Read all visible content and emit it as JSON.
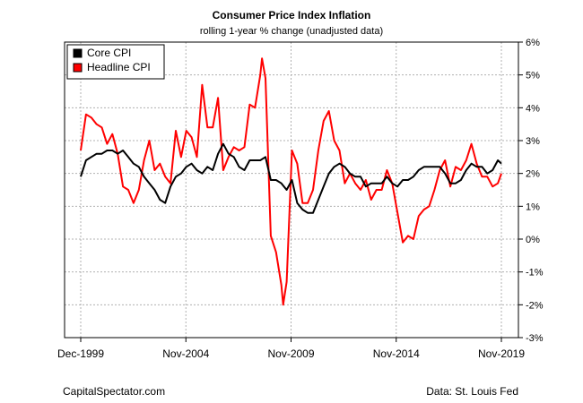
{
  "chart_data": {
    "type": "line",
    "title": "Consumer Price Index Inflation",
    "subtitle": "rolling 1-year % change (unadjusted data)",
    "x_tick_labels": [
      "Dec-1999",
      "Nov-2004",
      "Nov-2009",
      "Nov-2014",
      "Nov-2019"
    ],
    "y_tick_labels": [
      "6%",
      "5%",
      "4%",
      "3%",
      "2%",
      "1%",
      "0%",
      "-1%",
      "-2%",
      "-3%"
    ],
    "xlim": [
      "1999-12",
      "2019-11"
    ],
    "ylim": [
      -3,
      6
    ],
    "y_axis_position": "right",
    "grid": true,
    "legend_position": "top-left",
    "series": [
      {
        "name": "Core CPI",
        "color": "#000000",
        "points": [
          [
            "1999-12",
            1.9
          ],
          [
            "2000-03",
            2.4
          ],
          [
            "2000-06",
            2.5
          ],
          [
            "2000-09",
            2.6
          ],
          [
            "2000-12",
            2.6
          ],
          [
            "2001-03",
            2.7
          ],
          [
            "2001-06",
            2.7
          ],
          [
            "2001-09",
            2.6
          ],
          [
            "2001-12",
            2.7
          ],
          [
            "2002-03",
            2.5
          ],
          [
            "2002-06",
            2.3
          ],
          [
            "2002-09",
            2.2
          ],
          [
            "2002-12",
            1.9
          ],
          [
            "2003-03",
            1.7
          ],
          [
            "2003-06",
            1.5
          ],
          [
            "2003-09",
            1.2
          ],
          [
            "2003-12",
            1.1
          ],
          [
            "2004-03",
            1.6
          ],
          [
            "2004-06",
            1.9
          ],
          [
            "2004-09",
            2.0
          ],
          [
            "2004-12",
            2.2
          ],
          [
            "2005-03",
            2.3
          ],
          [
            "2005-06",
            2.1
          ],
          [
            "2005-09",
            2.0
          ],
          [
            "2005-12",
            2.2
          ],
          [
            "2006-03",
            2.1
          ],
          [
            "2006-06",
            2.6
          ],
          [
            "2006-09",
            2.9
          ],
          [
            "2006-12",
            2.6
          ],
          [
            "2007-03",
            2.5
          ],
          [
            "2007-06",
            2.2
          ],
          [
            "2007-09",
            2.1
          ],
          [
            "2007-12",
            2.4
          ],
          [
            "2008-03",
            2.4
          ],
          [
            "2008-06",
            2.4
          ],
          [
            "2008-09",
            2.5
          ],
          [
            "2008-12",
            1.8
          ],
          [
            "2009-03",
            1.8
          ],
          [
            "2009-06",
            1.7
          ],
          [
            "2009-09",
            1.5
          ],
          [
            "2009-12",
            1.8
          ],
          [
            "2010-03",
            1.1
          ],
          [
            "2010-06",
            0.9
          ],
          [
            "2010-09",
            0.8
          ],
          [
            "2010-12",
            0.8
          ],
          [
            "2011-03",
            1.2
          ],
          [
            "2011-06",
            1.6
          ],
          [
            "2011-09",
            2.0
          ],
          [
            "2011-12",
            2.2
          ],
          [
            "2012-03",
            2.3
          ],
          [
            "2012-06",
            2.2
          ],
          [
            "2012-09",
            2.0
          ],
          [
            "2012-12",
            1.9
          ],
          [
            "2013-03",
            1.9
          ],
          [
            "2013-06",
            1.6
          ],
          [
            "2013-09",
            1.7
          ],
          [
            "2013-12",
            1.7
          ],
          [
            "2014-03",
            1.7
          ],
          [
            "2014-06",
            1.9
          ],
          [
            "2014-09",
            1.7
          ],
          [
            "2014-12",
            1.6
          ],
          [
            "2015-03",
            1.8
          ],
          [
            "2015-06",
            1.8
          ],
          [
            "2015-09",
            1.9
          ],
          [
            "2015-12",
            2.1
          ],
          [
            "2016-03",
            2.2
          ],
          [
            "2016-06",
            2.2
          ],
          [
            "2016-09",
            2.2
          ],
          [
            "2016-12",
            2.2
          ],
          [
            "2017-03",
            2.0
          ],
          [
            "2017-06",
            1.7
          ],
          [
            "2017-09",
            1.7
          ],
          [
            "2017-12",
            1.8
          ],
          [
            "2018-03",
            2.1
          ],
          [
            "2018-06",
            2.3
          ],
          [
            "2018-09",
            2.2
          ],
          [
            "2018-12",
            2.2
          ],
          [
            "2019-03",
            2.0
          ],
          [
            "2019-06",
            2.1
          ],
          [
            "2019-09",
            2.4
          ],
          [
            "2019-11",
            2.3
          ]
        ]
      },
      {
        "name": "Headline CPI",
        "color": "#ff0000",
        "points": [
          [
            "1999-12",
            2.7
          ],
          [
            "2000-03",
            3.8
          ],
          [
            "2000-06",
            3.7
          ],
          [
            "2000-09",
            3.5
          ],
          [
            "2000-12",
            3.4
          ],
          [
            "2001-03",
            2.9
          ],
          [
            "2001-06",
            3.2
          ],
          [
            "2001-09",
            2.6
          ],
          [
            "2001-12",
            1.6
          ],
          [
            "2002-03",
            1.5
          ],
          [
            "2002-06",
            1.1
          ],
          [
            "2002-09",
            1.5
          ],
          [
            "2002-12",
            2.4
          ],
          [
            "2003-03",
            3.0
          ],
          [
            "2003-06",
            2.1
          ],
          [
            "2003-09",
            2.3
          ],
          [
            "2003-12",
            1.9
          ],
          [
            "2004-03",
            1.7
          ],
          [
            "2004-06",
            3.3
          ],
          [
            "2004-09",
            2.5
          ],
          [
            "2004-12",
            3.3
          ],
          [
            "2005-03",
            3.1
          ],
          [
            "2005-06",
            2.5
          ],
          [
            "2005-09",
            4.7
          ],
          [
            "2005-12",
            3.4
          ],
          [
            "2006-03",
            3.4
          ],
          [
            "2006-06",
            4.3
          ],
          [
            "2006-09",
            2.1
          ],
          [
            "2006-12",
            2.5
          ],
          [
            "2007-03",
            2.8
          ],
          [
            "2007-06",
            2.7
          ],
          [
            "2007-09",
            2.8
          ],
          [
            "2007-12",
            4.1
          ],
          [
            "2008-03",
            4.0
          ],
          [
            "2008-06",
            5.0
          ],
          [
            "2008-07",
            5.5
          ],
          [
            "2008-09",
            4.9
          ],
          [
            "2008-12",
            0.1
          ],
          [
            "2009-03",
            -0.4
          ],
          [
            "2009-06",
            -1.4
          ],
          [
            "2009-07",
            -2.0
          ],
          [
            "2009-09",
            -1.3
          ],
          [
            "2009-12",
            2.7
          ],
          [
            "2010-03",
            2.3
          ],
          [
            "2010-06",
            1.1
          ],
          [
            "2010-09",
            1.1
          ],
          [
            "2010-12",
            1.5
          ],
          [
            "2011-03",
            2.7
          ],
          [
            "2011-06",
            3.6
          ],
          [
            "2011-09",
            3.9
          ],
          [
            "2011-12",
            3.0
          ],
          [
            "2012-03",
            2.7
          ],
          [
            "2012-06",
            1.7
          ],
          [
            "2012-09",
            2.0
          ],
          [
            "2012-12",
            1.7
          ],
          [
            "2013-03",
            1.5
          ],
          [
            "2013-06",
            1.8
          ],
          [
            "2013-09",
            1.2
          ],
          [
            "2013-12",
            1.5
          ],
          [
            "2014-03",
            1.5
          ],
          [
            "2014-06",
            2.1
          ],
          [
            "2014-09",
            1.7
          ],
          [
            "2014-12",
            0.8
          ],
          [
            "2015-03",
            -0.1
          ],
          [
            "2015-06",
            0.1
          ],
          [
            "2015-09",
            0.0
          ],
          [
            "2015-12",
            0.7
          ],
          [
            "2016-03",
            0.9
          ],
          [
            "2016-06",
            1.0
          ],
          [
            "2016-09",
            1.5
          ],
          [
            "2016-12",
            2.1
          ],
          [
            "2017-03",
            2.4
          ],
          [
            "2017-06",
            1.6
          ],
          [
            "2017-09",
            2.2
          ],
          [
            "2017-12",
            2.1
          ],
          [
            "2018-03",
            2.4
          ],
          [
            "2018-06",
            2.9
          ],
          [
            "2018-09",
            2.3
          ],
          [
            "2018-12",
            1.9
          ],
          [
            "2019-03",
            1.9
          ],
          [
            "2019-06",
            1.6
          ],
          [
            "2019-09",
            1.7
          ],
          [
            "2019-11",
            2.0
          ]
        ]
      }
    ]
  },
  "footer": {
    "source_left": "CapitalSpectator.com",
    "source_right": "Data: St. Louis Fed"
  }
}
